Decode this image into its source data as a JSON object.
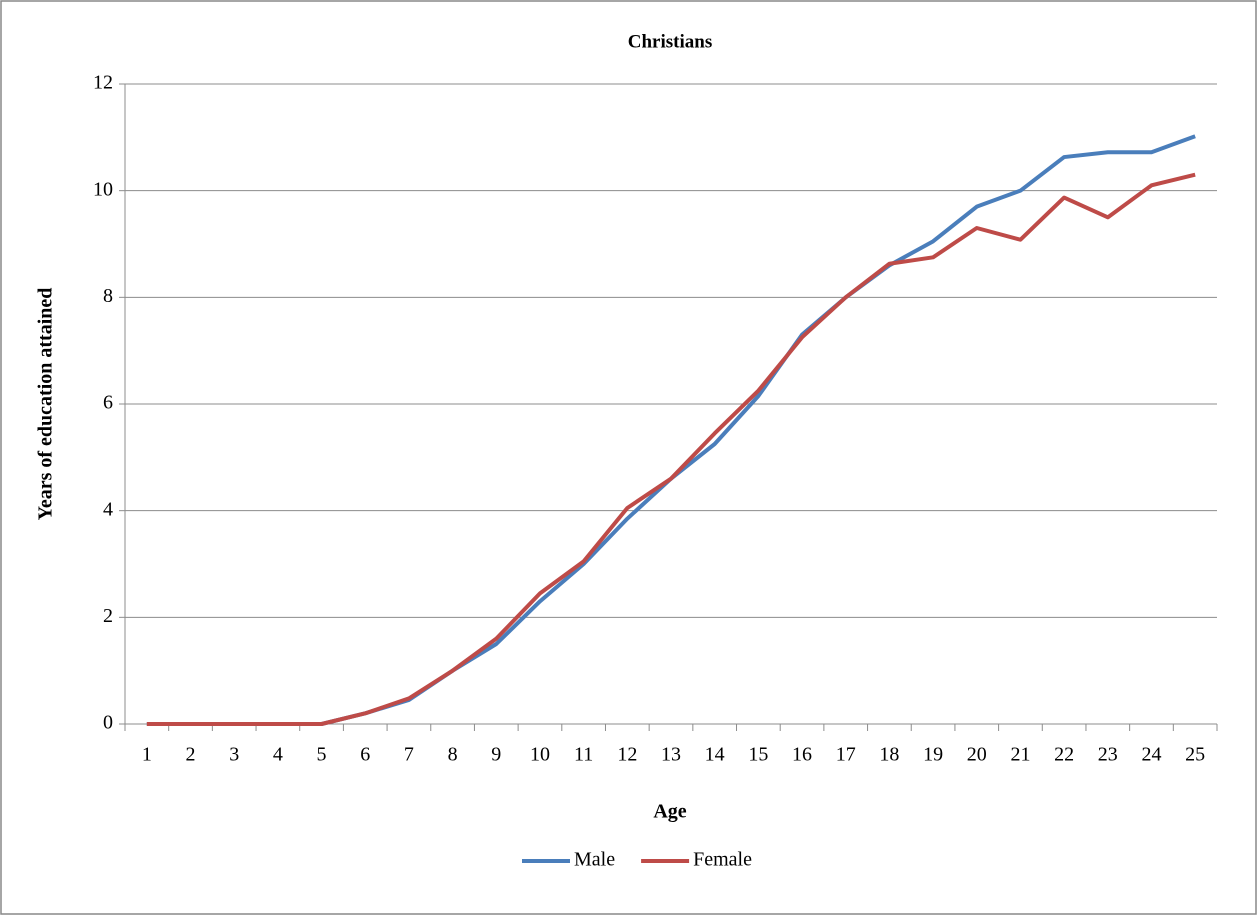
{
  "chart_data": {
    "type": "line",
    "title": "Christians",
    "x_label": "Age",
    "y_label": "Years of education attained",
    "categories": [
      "1",
      "2",
      "3",
      "4",
      "5",
      "6",
      "7",
      "8",
      "9",
      "10",
      "11",
      "12",
      "13",
      "14",
      "15",
      "16",
      "17",
      "18",
      "19",
      "20",
      "21",
      "22",
      "23",
      "24",
      "25"
    ],
    "series": [
      {
        "name": "Male",
        "color": "#4a7ebb",
        "values": [
          0,
          0,
          0,
          0,
          0,
          0.2,
          0.45,
          1.0,
          1.5,
          2.3,
          3.0,
          3.85,
          4.6,
          5.25,
          6.15,
          7.3,
          8.0,
          8.6,
          9.05,
          9.7,
          10.0,
          10.63,
          10.72,
          10.72,
          11.02
        ]
      },
      {
        "name": "Female",
        "color": "#be4b48",
        "values": [
          0,
          0,
          0,
          0,
          0,
          0.2,
          0.48,
          1.0,
          1.6,
          2.45,
          3.05,
          4.05,
          4.6,
          5.45,
          6.25,
          7.25,
          8.0,
          8.63,
          8.75,
          9.3,
          9.08,
          9.87,
          9.5,
          10.1,
          10.3
        ]
      }
    ],
    "ylim": [
      0,
      12
    ],
    "yticks": [
      0,
      2,
      4,
      6,
      8,
      10,
      12
    ],
    "grid": true,
    "legend": "bottom"
  }
}
